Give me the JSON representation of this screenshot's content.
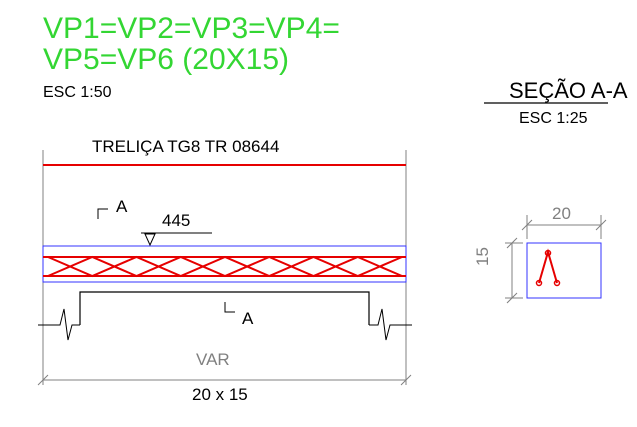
{
  "title": {
    "line1": "VP1=VP2=VP3=VP4=",
    "line2": "VP5=VP6 (20X15)",
    "scale": "ESC 1:50"
  },
  "section": {
    "title": "SEÇÃO A-A",
    "scale": "ESC 1:25",
    "width_label": "20",
    "height_label": "15"
  },
  "beam": {
    "truss_label": "TRELIÇA TG8 TR 08644",
    "level_label": "445",
    "cut_label_top": "A",
    "cut_label_bottom": "A",
    "span_label": "VAR",
    "dims_label": "20 x 15"
  },
  "colors": {
    "title": "#33d633",
    "rebar": "#e60000",
    "outline": "#3333ff",
    "dim": "#808080",
    "line": "#000000"
  }
}
